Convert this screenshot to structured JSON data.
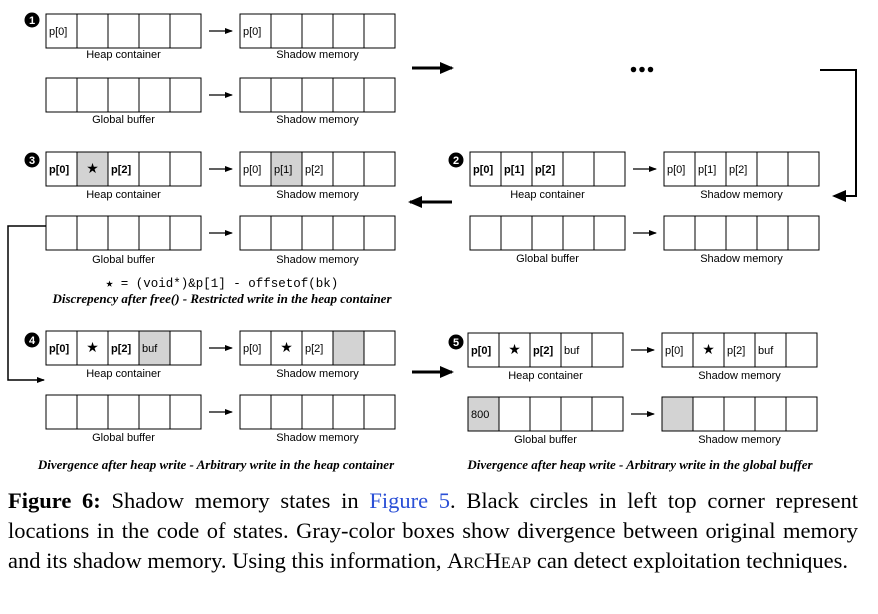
{
  "states": [
    {
      "step": "1",
      "heap": [
        "p[0]",
        "",
        "",
        "",
        ""
      ],
      "heap_bold": false,
      "shadow_heap": [
        "p[0]",
        "",
        "",
        "",
        ""
      ],
      "global": [
        "",
        "",
        "",
        "",
        ""
      ],
      "shadow_global": [
        "",
        "",
        "",
        "",
        ""
      ],
      "heap_label": "Heap container",
      "global_label": "Global buffer",
      "shadow_label": "Shadow memory"
    },
    {
      "step": "2",
      "heap": [
        "p[0]",
        "p[1]",
        "p[2]",
        "",
        ""
      ],
      "heap_bold": true,
      "shadow_heap": [
        "p[0]",
        "p[1]",
        "p[2]",
        "",
        ""
      ],
      "global": [
        "",
        "",
        "",
        "",
        ""
      ],
      "shadow_global": [
        "",
        "",
        "",
        "",
        ""
      ],
      "heap_label": "Heap container",
      "global_label": "Global buffer",
      "shadow_label": "Shadow memory"
    },
    {
      "step": "3",
      "heap": [
        "p[0]",
        "★",
        "p[2]",
        "",
        ""
      ],
      "heap_bold": true,
      "heap_gray": [
        1
      ],
      "shadow_heap": [
        "p[0]",
        "p[1]",
        "p[2]",
        "",
        ""
      ],
      "shadow_heap_gray": [
        1
      ],
      "global": [
        "",
        "",
        "",
        "",
        ""
      ],
      "shadow_global": [
        "",
        "",
        "",
        "",
        ""
      ],
      "heap_label": "Heap container",
      "global_label": "Global buffer",
      "shadow_label": "Shadow memory",
      "formula": "★ = (void*)&p[1] - offsetof(bk)",
      "note": "Discrepency after free() - Restricted write in the heap container"
    },
    {
      "step": "4",
      "heap": [
        "p[0]",
        "★",
        "p[2]",
        "buf",
        ""
      ],
      "heap_bold": true,
      "heap_gray": [
        3
      ],
      "shadow_heap": [
        "p[0]",
        "★",
        "p[2]",
        "",
        ""
      ],
      "shadow_heap_gray": [
        3
      ],
      "global": [
        "",
        "",
        "",
        "",
        ""
      ],
      "shadow_global": [
        "",
        "",
        "",
        "",
        ""
      ],
      "heap_label": "Heap container",
      "global_label": "Global buffer",
      "shadow_label": "Shadow memory",
      "note": "Divergence after heap write - Arbitrary write in the heap container"
    },
    {
      "step": "5",
      "heap": [
        "p[0]",
        "★",
        "p[2]",
        "buf",
        ""
      ],
      "heap_bold": true,
      "shadow_heap": [
        "p[0]",
        "★",
        "p[2]",
        "buf",
        ""
      ],
      "global": [
        "800",
        "",
        "",
        "",
        ""
      ],
      "global_gray": [
        0
      ],
      "shadow_global": [
        "",
        "",
        "",
        "",
        ""
      ],
      "shadow_global_gray": [
        0
      ],
      "heap_label": "Heap container",
      "global_label": "Global buffer",
      "shadow_label": "Shadow memory",
      "note": "Divergence after heap write - Arbitrary write in the global buffer"
    }
  ],
  "ellipsis": "...",
  "caption": {
    "label": "Figure 6:",
    "text_before_ref": " Shadow memory states in ",
    "ref": "Figure 5",
    "text_after_ref": ". Black circles in left top corner represent locations in the code of states. Gray-color boxes show divergence between original memory and its shadow memory.  Using this information, ",
    "tool": "ArcHeap",
    "text_end": " can detect exploitation techniques."
  },
  "colors": {
    "gray_fill": "#d3d3d3",
    "link": "#2a4fd6"
  }
}
